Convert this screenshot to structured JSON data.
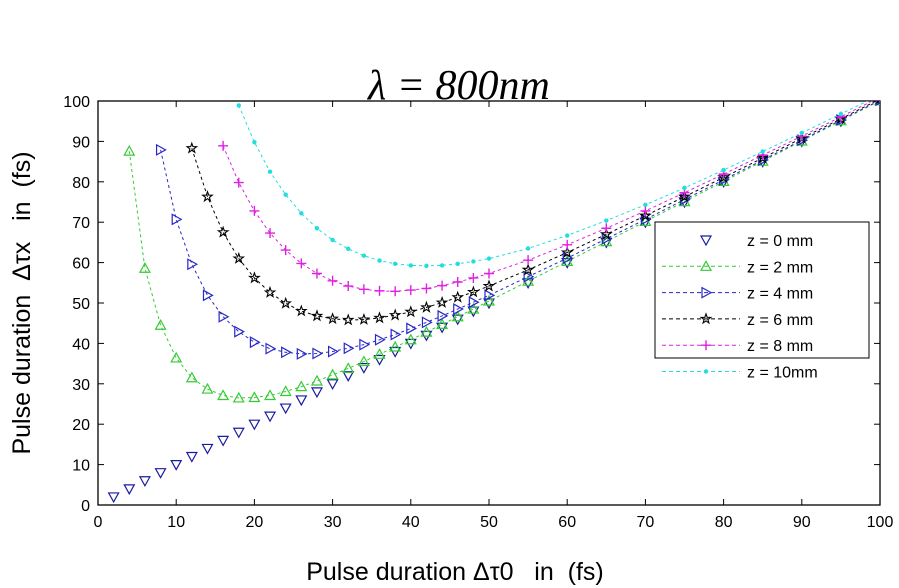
{
  "chart_data": {
    "type": "line",
    "title": "λ = 800nm",
    "xlabel": "Pulse duration Δτ0   in  (fs)",
    "ylabel": "Pulse duration  Δτx   in  (fs)",
    "xlim": [
      0,
      100
    ],
    "ylim": [
      0,
      100
    ],
    "xticks": [
      0,
      10,
      20,
      30,
      40,
      50,
      60,
      70,
      80,
      90,
      100
    ],
    "yticks": [
      0,
      10,
      20,
      30,
      40,
      50,
      60,
      70,
      80,
      90,
      100
    ],
    "grid": false,
    "legend_position": "right",
    "x": [
      2,
      4,
      6,
      8,
      10,
      12,
      14,
      16,
      18,
      20,
      22,
      24,
      26,
      28,
      30,
      32,
      34,
      36,
      38,
      40,
      42,
      44,
      46,
      48,
      50,
      55,
      60,
      65,
      70,
      75,
      80,
      85,
      90,
      95,
      100
    ],
    "series": [
      {
        "name": "z = 0 mm",
        "color": "#1c1ca0",
        "marker": "triangle-down",
        "line": "none",
        "values": [
          2,
          4,
          6,
          8,
          10,
          12,
          14,
          16,
          18,
          20,
          22,
          24,
          26,
          28,
          30,
          32,
          34,
          36,
          38,
          40,
          42,
          44,
          46,
          48,
          50,
          55,
          60,
          65,
          70,
          75,
          80,
          85,
          90,
          95,
          100
        ]
      },
      {
        "name": "z = 2 mm",
        "color": "#33cc33",
        "marker": "triangle-up",
        "line": "dashed",
        "values": [
          null,
          87.6,
          58.6,
          44.5,
          36.4,
          31.5,
          28.7,
          27.1,
          26.5,
          26.6,
          27.1,
          28.1,
          29.3,
          30.7,
          32.2,
          33.8,
          35.5,
          37.3,
          39.1,
          40.9,
          42.8,
          44.7,
          46.6,
          48.5,
          50.5,
          55.4,
          60.3,
          65.2,
          70.2,
          75.1,
          80.1,
          85.1,
          90.1,
          95.1,
          100.1
        ]
      },
      {
        "name": "z = 4 mm",
        "color": "#2828c8",
        "marker": "triangle-right",
        "line": "dashed",
        "values": [
          null,
          null,
          null,
          87.9,
          70.7,
          59.6,
          51.9,
          46.6,
          42.9,
          40.3,
          38.7,
          37.8,
          37.4,
          37.5,
          38.0,
          38.8,
          39.7,
          40.9,
          42.2,
          43.7,
          45.2,
          46.8,
          48.5,
          50.2,
          51.9,
          56.5,
          61.1,
          65.9,
          70.7,
          75.6,
          80.5,
          85.4,
          90.3,
          95.3,
          100.2
        ]
      },
      {
        "name": "z = 6 mm",
        "color": "#000000",
        "marker": "star",
        "line": "dashed",
        "values": [
          null,
          null,
          null,
          null,
          null,
          88.3,
          76.3,
          67.5,
          61.0,
          56.2,
          52.6,
          49.9,
          48.0,
          46.8,
          46.1,
          45.8,
          45.9,
          46.3,
          47.0,
          47.8,
          48.9,
          50.1,
          51.4,
          52.7,
          54.2,
          58.2,
          62.5,
          67.0,
          71.6,
          76.3,
          81.1,
          85.9,
          90.8,
          95.6,
          100.5
        ]
      },
      {
        "name": "z = 8 mm",
        "color": "#e020e0",
        "marker": "plus",
        "line": "dashed",
        "values": [
          null,
          null,
          null,
          null,
          null,
          null,
          null,
          88.9,
          79.8,
          72.8,
          67.3,
          63.1,
          59.8,
          57.3,
          55.5,
          54.2,
          53.4,
          53.0,
          52.9,
          53.2,
          53.6,
          54.3,
          55.2,
          56.2,
          57.3,
          60.6,
          64.4,
          68.5,
          72.8,
          77.3,
          81.9,
          86.6,
          91.3,
          96.1,
          101.0
        ]
      },
      {
        "name": "z = 10mm",
        "color": "#22dddd",
        "marker": "dot",
        "line": "dashed",
        "values": [
          null,
          null,
          null,
          null,
          null,
          null,
          null,
          null,
          98.9,
          89.8,
          82.5,
          76.8,
          72.2,
          68.5,
          65.6,
          63.4,
          61.7,
          60.5,
          59.7,
          59.3,
          59.2,
          59.3,
          59.7,
          60.3,
          61.0,
          63.5,
          66.7,
          70.4,
          74.3,
          78.5,
          82.9,
          87.5,
          92.1,
          96.8,
          101.5
        ]
      }
    ]
  }
}
